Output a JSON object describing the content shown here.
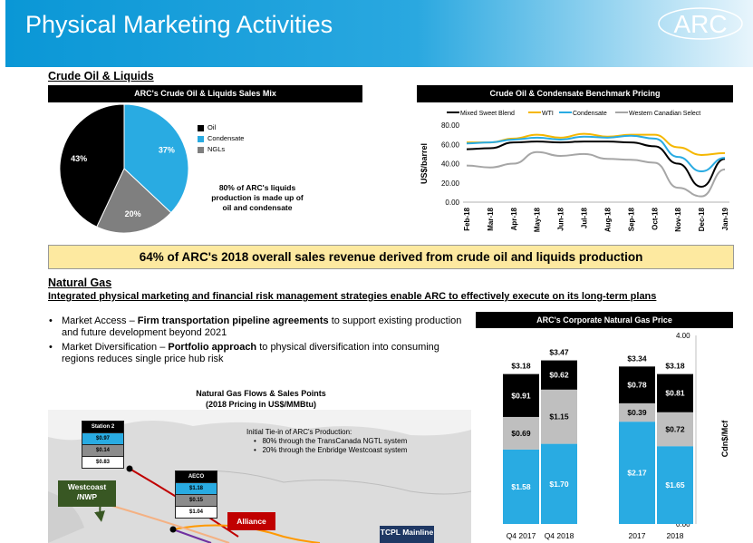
{
  "header": {
    "title": "Physical Marketing Activities",
    "logo_text": "ARC"
  },
  "crude": {
    "section_title": "Crude Oil & Liquids",
    "pie_title": "ARC's Crude Oil & Liquids Sales Mix",
    "pie_note": "80% of ARC's liquids production is made up of oil and condensate",
    "line_title": "Crude Oil & Condensate Benchmark Pricing"
  },
  "banner": "64% of ARC's 2018 overall sales revenue derived from crude oil and liquids production",
  "gas": {
    "section_title": "Natural Gas",
    "subtitle": "Integrated physical marketing and financial risk management strategies enable ARC to effectively execute on its long-term plans",
    "bullet1_lead": "Market Access – ",
    "bullet1_bold": "Firm transportation pipeline agreements",
    "bullet1_rest": " to support existing production and future development beyond 2021",
    "bullet2_lead": "Market Diversification – ",
    "bullet2_bold": "Portfolio approach",
    "bullet2_rest": " to physical diversification into consuming regions reduces single price hub risk",
    "map_title_1": "Natural Gas Flows & Sales Points",
    "map_title_2": "(2018 Pricing in US$/MMBtu)",
    "tie_in_title": "Initial Tie-in of ARC's Production:",
    "tie_in_1": "80% through the TransCanada NGTL system",
    "tie_in_2": "20% through the Enbridge Westcoast system",
    "bar_title": "ARC's Corporate Natural Gas Price"
  },
  "map": {
    "station2": {
      "name": "Station 2",
      "values": [
        "$0.97",
        "$0.14",
        "$0.83"
      ]
    },
    "aeco": {
      "name": "AECO",
      "values": [
        "$1.18",
        "$0.15",
        "$1.04"
      ]
    },
    "westcoast_label": "Westcoast /NWP",
    "alliance_label": "Alliance",
    "tcpl_label": "TCPL Mainline",
    "colors": {
      "sky": "#29abe2",
      "grey": "#8c8c8c",
      "green": "#385723",
      "red": "#c00000",
      "navy": "#1f3864"
    }
  },
  "chart_data": [
    {
      "type": "pie",
      "title": "ARC's Crude Oil & Liquids Sales Mix",
      "labels": [
        "Oil",
        "Condensate",
        "NGLs"
      ],
      "values": [
        43,
        37,
        20
      ],
      "value_labels": [
        "43%",
        "37%",
        "20%"
      ],
      "colors": [
        "#000000",
        "#29abe2",
        "#7f7f7f"
      ],
      "legend": "right"
    },
    {
      "type": "line",
      "title": "Crude Oil & Condensate Benchmark Pricing",
      "ylabel": "US$/barrel",
      "ylim": [
        0,
        80
      ],
      "yticks": [
        "0.00",
        "20.00",
        "40.00",
        "60.00",
        "80.00"
      ],
      "categories": [
        "Feb-18",
        "Mar-18",
        "Apr-18",
        "May-18",
        "Jun-18",
        "Jul-18",
        "Aug-18",
        "Sep-18",
        "Oct-18",
        "Nov-18",
        "Dec-18",
        "Jan-19"
      ],
      "legend": "top",
      "series": [
        {
          "name": "Mixed Sweet Blend",
          "color": "#000000",
          "values": [
            55,
            56,
            62,
            63,
            62,
            63,
            63,
            62,
            58,
            40,
            16,
            45
          ]
        },
        {
          "name": "WTI",
          "color": "#f5b700",
          "values": [
            62,
            62,
            66,
            70,
            67,
            71,
            68,
            70,
            70,
            57,
            49,
            51
          ]
        },
        {
          "name": "Condensate",
          "color": "#29abe2",
          "values": [
            61,
            62,
            65,
            67,
            65,
            68,
            67,
            69,
            66,
            47,
            32,
            46
          ]
        },
        {
          "name": "Western Canadian Select",
          "color": "#a6a6a6",
          "values": [
            38,
            36,
            40,
            52,
            48,
            50,
            45,
            44,
            41,
            15,
            6,
            34
          ]
        }
      ]
    },
    {
      "type": "bar",
      "title": "ARC's Corporate Natural Gas Price",
      "ylabel": "Cdn$/Mcf",
      "ylim": [
        0,
        4
      ],
      "yticks": [
        "0.00",
        "1.00",
        "2.00",
        "3.00",
        "4.00"
      ],
      "categories": [
        "Q4 2017",
        "Q4 2018",
        "2017",
        "2018"
      ],
      "totals": [
        "$3.18",
        "$3.47",
        "$3.34",
        "$3.18"
      ],
      "series": [
        {
          "color": "#29abe2",
          "values": [
            1.58,
            1.7,
            2.17,
            1.65
          ],
          "labels": [
            "$1.58",
            "$1.70",
            "$2.17",
            "$1.65"
          ]
        },
        {
          "color": "#bfbfbf",
          "values": [
            0.69,
            1.15,
            0.39,
            0.72
          ],
          "labels": [
            "$0.69",
            "$1.15",
            "$0.39",
            "$0.72"
          ]
        },
        {
          "color": "#000000",
          "values": [
            0.91,
            0.62,
            0.78,
            0.81
          ],
          "labels": [
            "$0.91",
            "$0.62",
            "$0.78",
            "$0.81"
          ]
        }
      ]
    }
  ]
}
